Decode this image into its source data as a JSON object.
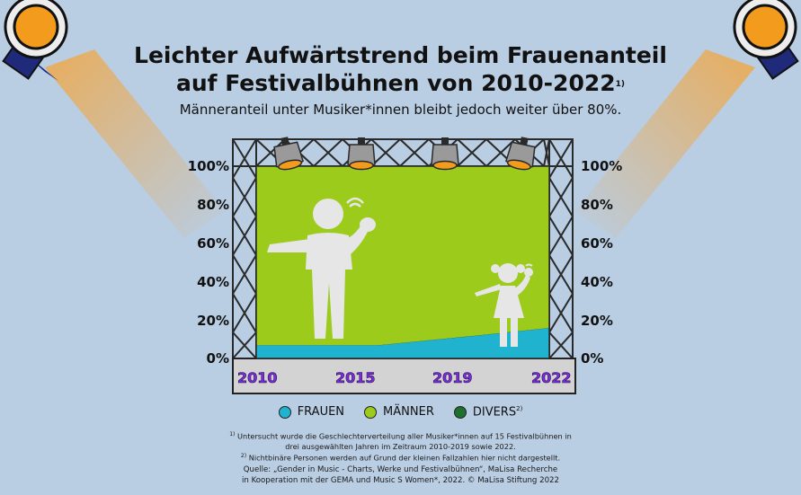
{
  "chart_data": {
    "type": "area",
    "title": "Leichter Aufwärtstrend beim Frauenanteil auf Festivalbühnen von 2010-2022",
    "title_line1": "Leichter Aufwärtstrend beim Frauenanteil",
    "title_line2": "auf Festivalbühnen von 2010-2022",
    "title_note": "1)",
    "subtitle": "Männeranteil unter Musiker*innen bleibt jedoch weiter über 80%.",
    "x": [
      2010,
      2015,
      2019,
      2022
    ],
    "x_labels": [
      "2010",
      "2015",
      "2019",
      "2022"
    ],
    "ylim": [
      0,
      100
    ],
    "y_ticks": [
      "0%",
      "20%",
      "40%",
      "60%",
      "80%",
      "100%"
    ],
    "stacked": true,
    "series": [
      {
        "name": "FRAUEN",
        "color": "#1fb3cf",
        "values": [
          7,
          7,
          12,
          16
        ]
      },
      {
        "name": "MÄNNER",
        "color": "#9ccb1c",
        "values": [
          93,
          93,
          88,
          84
        ]
      },
      {
        "name": "DIVERS",
        "name_note": "2)",
        "color": "#1f6f2f",
        "values": [
          0,
          0,
          0,
          0
        ]
      }
    ],
    "grid": false,
    "legend_position": "bottom"
  },
  "footnotes": {
    "note1_mark": "1)",
    "note1_line1": "Untersucht wurde die Geschlechterverteilung aller Musiker*innen auf 15 Festivalbühnen in",
    "note1_line2": "drei ausgewählten Jahren im Zeitraum 2010-2019 sowie 2022.",
    "note2_mark": "2)",
    "note2_line1": "Nichtbinäre Personen werden auf Grund der kleinen Fallzahlen hier nicht dargestellt."
  },
  "source": {
    "line1": "Quelle: „Gender in Music - Charts, Werke und Festivalbühnen“, MaLisa Recherche",
    "line2": "in Kooperation mit der GEMA und Music S Women*, 2022. © MaLisa Stiftung 2022"
  },
  "colors": {
    "background": "#b9cde3",
    "frauen": "#1fb3cf",
    "maenner": "#9ccb1c",
    "divers": "#1f6f2f",
    "stage_floor": "#d3d3d3",
    "lamp_orange": "#f39b1c",
    "year_label": "#7b2ed8"
  },
  "icons": [
    "spotlight-icon",
    "stage-lamp-icon",
    "man-singer-icon",
    "girl-singer-icon"
  ]
}
